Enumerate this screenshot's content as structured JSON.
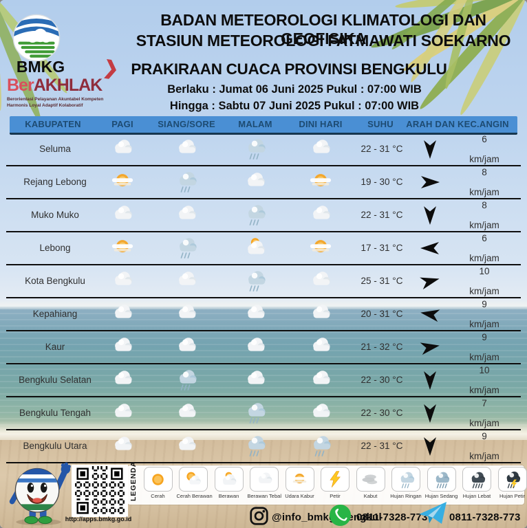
{
  "header": {
    "org_line1": "BADAN METEOROLOGI KLIMATOLOGI DAN GEOFISIKA",
    "org_line2": "STASIUN METEOROLOGI FATMAWATI SOEKARNO",
    "logo_text": "BMKG",
    "berakhlak_part1": "Ber",
    "berakhlak_part2": "AKHLAK",
    "berakhlak_tagline1": "Berorientasi Pelayanan Akuntabel Kompeten",
    "berakhlak_tagline2": "Harmonis Loyal Adaptif Kolaboratif",
    "chevron_glyph": "❯",
    "title": "PRAKIRAAN CUACA PROVINSI BENGKULU",
    "valid_from": "Berlaku : Jumat 06 Juni 2025 Pukul : 07:00 WIB",
    "valid_to": "Hingga : Sabtu 07 Juni 2025 Pukul : 07:00 WIB"
  },
  "table": {
    "columns": [
      "KABUPATEN",
      "PAGI",
      "SIANG/SORE",
      "MALAM",
      "DINI HARI",
      "SUHU",
      "ARAH DAN KEC.ANGIN"
    ],
    "speed_unit": "km/jam",
    "rows": [
      {
        "name": "Seluma",
        "pagi": "berawan-tebal",
        "siang_sore": "berawan-tebal",
        "malam": "hujan-ringan",
        "dini_hari": "berawan-tebal",
        "suhu": "22 - 31 °C",
        "wind_deg": 90,
        "speed": "6"
      },
      {
        "name": "Rejang Lebong",
        "pagi": "udara-kabur",
        "siang_sore": "hujan-ringan",
        "malam": "berawan-tebal",
        "dini_hari": "udara-kabur",
        "suhu": "19 - 30 °C",
        "wind_deg": 0,
        "speed": "8"
      },
      {
        "name": "Muko Muko",
        "pagi": "berawan-tebal",
        "siang_sore": "berawan-tebal",
        "malam": "hujan-ringan",
        "dini_hari": "berawan-tebal",
        "suhu": "22 - 31 °C",
        "wind_deg": 90,
        "speed": "8"
      },
      {
        "name": "Lebong",
        "pagi": "udara-kabur",
        "siang_sore": "hujan-ringan",
        "malam": "berawan",
        "dini_hari": "udara-kabur",
        "suhu": "17 - 31 °C",
        "wind_deg": 180,
        "speed": "6"
      },
      {
        "name": "Kota Bengkulu",
        "pagi": "berawan-tebal",
        "siang_sore": "berawan-tebal",
        "malam": "hujan-ringan",
        "dini_hari": "berawan-tebal",
        "suhu": "25 - 31 °C",
        "wind_deg": -15,
        "speed": "10"
      },
      {
        "name": "Kepahiang",
        "pagi": "berawan-tebal",
        "siang_sore": "berawan-tebal",
        "malam": "berawan-tebal",
        "dini_hari": "berawan-tebal",
        "suhu": "20 - 31 °C",
        "wind_deg": 190,
        "speed": "9"
      },
      {
        "name": "Kaur",
        "pagi": "berawan-tebal",
        "siang_sore": "berawan-tebal",
        "malam": "berawan-tebal",
        "dini_hari": "berawan-tebal",
        "suhu": "21 - 32 °C",
        "wind_deg": -10,
        "speed": "9"
      },
      {
        "name": "Bengkulu Selatan",
        "pagi": "berawan-tebal",
        "siang_sore": "hujan-ringan",
        "malam": "berawan-tebal",
        "dini_hari": "berawan-tebal",
        "suhu": "22 - 30 °C",
        "wind_deg": 90,
        "speed": "10"
      },
      {
        "name": "Bengkulu Tengah",
        "pagi": "berawan-tebal",
        "siang_sore": "berawan-tebal",
        "malam": "hujan-ringan",
        "dini_hari": "berawan-tebal",
        "suhu": "22 - 30 °C",
        "wind_deg": 90,
        "speed": "7"
      },
      {
        "name": "Bengkulu Utara",
        "pagi": "berawan-tebal",
        "siang_sore": "berawan-tebal",
        "malam": "hujan-ringan",
        "dini_hari": "hujan-ringan",
        "suhu": "22 - 31 °C",
        "wind_deg": 90,
        "speed": "9"
      }
    ]
  },
  "legend": {
    "label": "LEGENDA",
    "items": [
      {
        "icon": "cerah",
        "label": "Cerah"
      },
      {
        "icon": "cerah-berawan",
        "label": "Cerah Berawan"
      },
      {
        "icon": "berawan",
        "label": "Berawan"
      },
      {
        "icon": "berawan-tebal",
        "label": "Berawan Tebal"
      },
      {
        "icon": "udara-kabur",
        "label": "Udara Kabur"
      },
      {
        "icon": "petir",
        "label": "Petir"
      },
      {
        "icon": "kabut",
        "label": "Kabut"
      },
      {
        "icon": "hujan-ringan",
        "label": "Hujan Ringan"
      },
      {
        "icon": "hujan-sedang",
        "label": "Hujan Sedang"
      },
      {
        "icon": "hujan-lebat",
        "label": "Hujan Lebat"
      },
      {
        "icon": "hujan-petir",
        "label": "Hujan Petir"
      }
    ]
  },
  "footer": {
    "qr_url": "http://apps.bmkg.go.id",
    "instagram": "@info_bmkg_bengkul",
    "whatsapp": "0811-7328-773",
    "telegram": "0811-7328-773"
  },
  "colors": {
    "table_header_bar": "#4a8fd4",
    "table_header_text": "#1d4b72",
    "berakhlak_red": "#8f2d3c",
    "chevron_red": "#c43c43",
    "whatsapp_green": "#28b446",
    "telegram_blue": "#33a8dd",
    "arrow_black": "#0c0c0c"
  }
}
